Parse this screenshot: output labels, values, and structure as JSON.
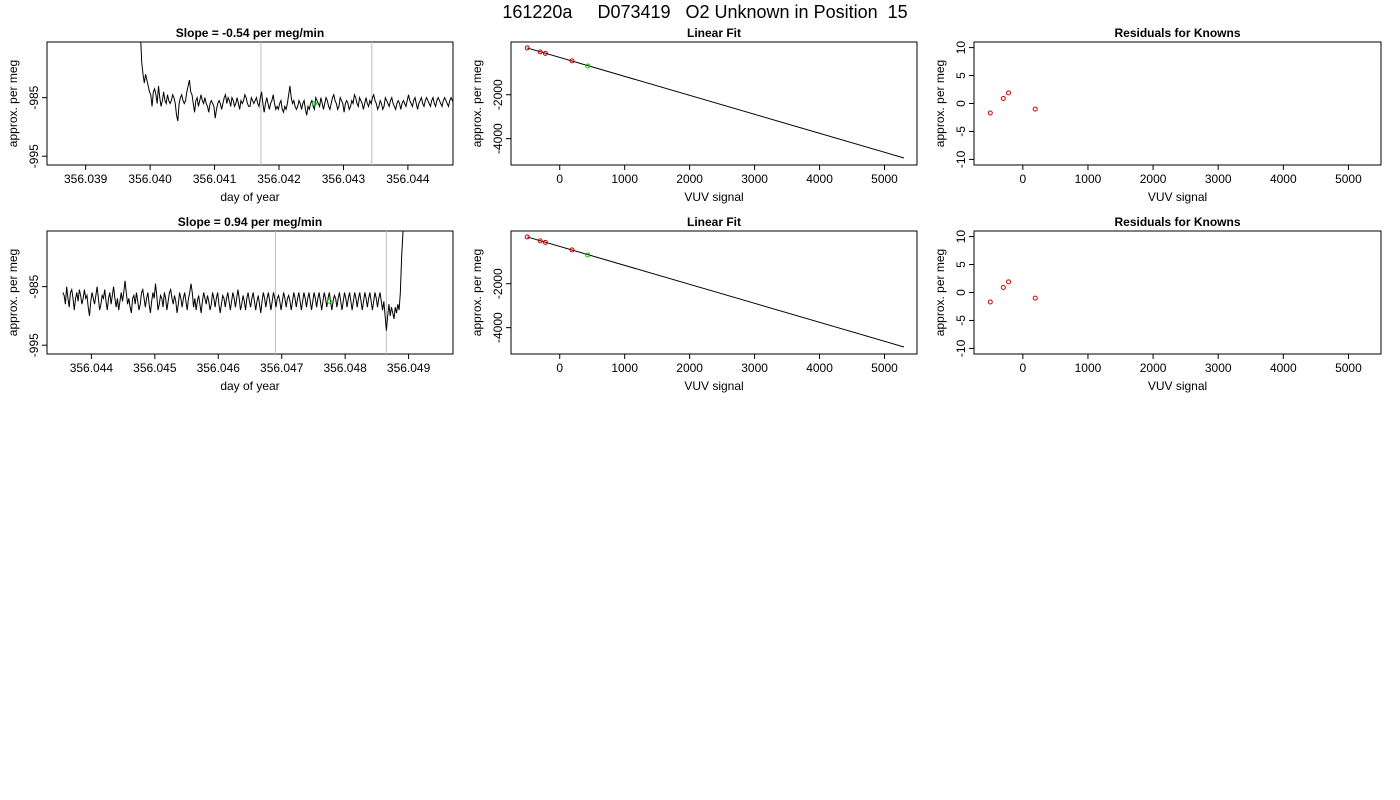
{
  "figure": {
    "title": "161220a     D073419   O2 Unknown in Position  15"
  },
  "chart_data": [
    {
      "type": "line",
      "title": "Slope =  -0.54  per meg/min",
      "xlabel": "day of year",
      "ylabel": "approx. per meg",
      "xlim": [
        356.0384,
        356.0447
      ],
      "ylim": [
        -996.5,
        -975.5
      ],
      "x_ticks": [
        "356.039",
        "356.040",
        "356.041",
        "356.042",
        "356.043",
        "356.044"
      ],
      "y_ticks": [
        "-985",
        "-995"
      ],
      "series": [
        {
          "x_start": 356.03985,
          "x_step": 2e-05,
          "values": [
            -974.0,
            -979.0,
            -981.0,
            -982.5,
            -981.0,
            -982.0,
            -983.0,
            -984.0,
            -984.5,
            -986.5,
            -984.0,
            -983.5,
            -984.5,
            -986.0,
            -983.0,
            -985.0,
            -986.5,
            -985.5,
            -984.0,
            -985.5,
            -986.0,
            -984.5,
            -985.5,
            -986.0,
            -985.5,
            -984.5,
            -985.0,
            -986.0,
            -988.0,
            -989.0,
            -986.0,
            -985.0,
            -984.5,
            -985.5,
            -986.0,
            -985.5,
            -984.0,
            -983.0,
            -982.0,
            -984.0,
            -984.5,
            -986.0,
            -987.5,
            -985.5,
            -985.0,
            -986.5,
            -985.5,
            -984.5,
            -985.5,
            -986.0,
            -985.0,
            -986.0,
            -986.5,
            -987.5,
            -986.0,
            -985.5,
            -986.0,
            -986.5,
            -988.5,
            -987.0,
            -986.0,
            -985.5,
            -986.0,
            -987.0,
            -986.0,
            -985.0,
            -984.5,
            -986.0,
            -985.0,
            -985.5,
            -986.5,
            -985.0,
            -985.5,
            -986.5,
            -986.0,
            -985.0,
            -986.0,
            -987.0,
            -985.5,
            -986.0,
            -985.5,
            -984.5,
            -985.0,
            -986.0,
            -986.5,
            -986.5,
            -985.0,
            -985.5,
            -986.0,
            -985.5,
            -985.0,
            -986.0,
            -986.5,
            -985.0,
            -984.0,
            -986.0,
            -987.5,
            -986.0,
            -985.0,
            -986.0,
            -987.0,
            -986.0,
            -985.5,
            -984.5,
            -986.0,
            -987.0,
            -986.5,
            -987.0,
            -986.0,
            -985.5,
            -987.0,
            -987.5,
            -986.5,
            -987.0,
            -986.0,
            -984.5,
            -983.0,
            -985.0,
            -986.0,
            -985.5,
            -986.5,
            -987.0,
            -986.5,
            -985.5,
            -986.0,
            -987.0,
            -986.0,
            -985.5,
            -987.0,
            -988.0,
            -986.5,
            -987.0,
            -986.0,
            -985.5,
            -986.5,
            -987.0,
            -985.0,
            -985.5,
            -986.0,
            -986.5,
            -985.0,
            -986.0,
            -987.0,
            -986.0,
            -985.0,
            -985.5,
            -986.5,
            -987.0,
            -986.0,
            -985.0,
            -984.5,
            -985.5,
            -986.0,
            -987.0,
            -986.5,
            -985.0,
            -985.5,
            -986.0,
            -987.5,
            -986.0,
            -985.5,
            -986.0,
            -987.0,
            -986.5,
            -985.5,
            -986.0,
            -984.5,
            -985.0,
            -986.0,
            -986.5,
            -985.0,
            -985.5,
            -986.0,
            -987.0,
            -986.0,
            -985.0,
            -986.0,
            -986.5,
            -985.5,
            -986.0,
            -985.0,
            -984.5,
            -985.5,
            -986.0,
            -987.0,
            -986.5,
            -985.5,
            -986.0,
            -987.0,
            -986.5,
            -985.0,
            -985.5,
            -986.0,
            -986.5,
            -985.5,
            -985.0,
            -986.0,
            -986.5,
            -987.0,
            -986.0,
            -985.5,
            -986.0,
            -987.0,
            -986.0,
            -985.5,
            -986.0,
            -986.5,
            -985.5,
            -984.5,
            -985.5,
            -986.0,
            -986.5,
            -985.5,
            -985.0,
            -986.0,
            -987.0,
            -986.0,
            -985.5,
            -985.0,
            -986.0,
            -986.5,
            -985.5,
            -985.0,
            -985.5,
            -986.0,
            -986.5,
            -985.5,
            -985.0,
            -986.0,
            -986.5,
            -985.5,
            -985.0,
            -985.5,
            -986.0,
            -986.5,
            -985.5,
            -985.0,
            -985.5,
            -986.0,
            -986.5,
            -985.5,
            -985.0,
            -985.5,
            -986.0,
            -986.5,
            -985.5,
            -985.0,
            -985.5,
            -986.0,
            -986.5,
            -985.5,
            -985.0,
            -985.5,
            -986.0,
            -986.5,
            -985.5,
            -985.0,
            -985.5,
            -986.0,
            -986.5,
            -985.5,
            -985.0,
            -985.5,
            -986.0,
            -986.5,
            -985.5,
            -985.0,
            -985.5,
            -986.0,
            -986.5,
            -985.5,
            -985.0,
            -985.5,
            -986.0,
            -986.5,
            -985.5,
            -985.0,
            -985.5,
            -986.0,
            -986.5,
            -985.5,
            -985.0,
            -985.5,
            -986.0,
            -986.5,
            -985.5,
            -985.0,
            -985.5,
            -986.0,
            -986.5,
            -985.5,
            -985.0,
            -985.0,
            -984.5
          ]
        }
      ],
      "vlines": [
        356.04172,
        356.04344
      ],
      "highlight_point": {
        "x": 356.04255,
        "y": -986.0,
        "color": "#00cc00"
      },
      "grid": false
    },
    {
      "type": "scatter",
      "title": "Linear Fit",
      "xlabel": "VUV signal",
      "ylabel": "approx. per meg",
      "xlim": [
        -750,
        5500
      ],
      "ylim": [
        -5200,
        400
      ],
      "x_ticks": [
        0,
        1000,
        2000,
        3000,
        4000,
        5000
      ],
      "y_ticks": [
        -2000,
        -4000
      ],
      "points": [
        {
          "x": -500,
          "y": 130,
          "color": "#cc0000"
        },
        {
          "x": -300,
          "y": -50,
          "color": "#cc0000"
        },
        {
          "x": -220,
          "y": -120,
          "color": "#cc0000"
        },
        {
          "x": 190,
          "y": -460,
          "color": "#cc0000"
        },
        {
          "x": 430,
          "y": -690,
          "color": "#00cc00"
        }
      ],
      "fit_line": {
        "x": [
          -500,
          5300
        ],
        "y": [
          130,
          -4880
        ]
      },
      "grid": false
    },
    {
      "type": "scatter",
      "title": "Residuals for Knowns",
      "xlabel": "VUV signal",
      "ylabel": "approx. per meg",
      "xlim": [
        -750,
        5500
      ],
      "ylim": [
        -11,
        11
      ],
      "x_ticks": [
        0,
        1000,
        2000,
        3000,
        4000,
        5000
      ],
      "y_ticks": [
        10,
        5,
        0,
        -5,
        -10
      ],
      "points": [
        {
          "x": -500,
          "y": -1.7,
          "color": "#cc0000"
        },
        {
          "x": -300,
          "y": 0.9,
          "color": "#cc0000"
        },
        {
          "x": -220,
          "y": 1.9,
          "color": "#cc0000"
        },
        {
          "x": 190,
          "y": -1.0,
          "color": "#cc0000"
        }
      ],
      "grid": false
    },
    {
      "type": "line",
      "title": "Slope =  0.94  per meg/min",
      "xlabel": "day of year",
      "ylabel": "approx. per meg",
      "xlim": [
        356.0433,
        356.0497
      ],
      "ylim": [
        -996.5,
        -975.5
      ],
      "x_ticks": [
        "356.044",
        "356.045",
        "356.046",
        "356.047",
        "356.048",
        "356.049"
      ],
      "y_ticks": [
        "-985",
        "-995"
      ],
      "series": [
        {
          "x_start": 356.04355,
          "x_step": 2e-05,
          "values": [
            -986.0,
            -986.5,
            -988.0,
            -985.0,
            -987.0,
            -988.5,
            -986.0,
            -985.5,
            -987.0,
            -989.0,
            -987.0,
            -986.0,
            -987.5,
            -985.5,
            -986.5,
            -988.0,
            -987.0,
            -985.5,
            -987.0,
            -986.5,
            -988.5,
            -990.0,
            -987.5,
            -986.0,
            -987.0,
            -988.0,
            -986.5,
            -985.0,
            -987.0,
            -989.0,
            -988.0,
            -986.5,
            -987.0,
            -985.5,
            -987.5,
            -989.0,
            -987.0,
            -986.0,
            -988.0,
            -986.5,
            -985.0,
            -987.0,
            -988.5,
            -987.0,
            -989.0,
            -987.5,
            -986.0,
            -987.5,
            -986.0,
            -984.0,
            -986.0,
            -988.0,
            -987.0,
            -988.5,
            -989.5,
            -987.0,
            -986.5,
            -988.0,
            -986.0,
            -987.5,
            -989.0,
            -988.0,
            -986.0,
            -985.5,
            -987.0,
            -988.5,
            -987.0,
            -986.0,
            -988.0,
            -989.5,
            -987.5,
            -986.0,
            -987.0,
            -984.5,
            -986.5,
            -989.0,
            -988.0,
            -986.5,
            -987.0,
            -988.5,
            -986.0,
            -987.0,
            -989.0,
            -987.5,
            -986.0,
            -985.5,
            -987.0,
            -988.0,
            -986.5,
            -987.5,
            -989.5,
            -988.0,
            -986.0,
            -987.0,
            -988.5,
            -987.0,
            -986.0,
            -987.5,
            -989.0,
            -987.0,
            -986.0,
            -984.5,
            -986.0,
            -988.5,
            -987.0,
            -989.0,
            -987.5,
            -986.5,
            -988.0,
            -989.5,
            -987.5,
            -986.0,
            -987.0,
            -988.0,
            -986.5,
            -987.5,
            -989.0,
            -988.0,
            -986.0,
            -987.0,
            -988.5,
            -987.0,
            -986.0,
            -988.0,
            -989.5,
            -988.0,
            -986.5,
            -987.0,
            -988.5,
            -987.0,
            -986.0,
            -987.5,
            -989.0,
            -987.5,
            -986.0,
            -987.0,
            -988.5,
            -987.0,
            -985.5,
            -987.0,
            -989.0,
            -988.0,
            -986.5,
            -987.5,
            -989.0,
            -987.0,
            -986.0,
            -987.5,
            -988.5,
            -987.0,
            -986.0,
            -987.5,
            -989.0,
            -987.5,
            -986.5,
            -988.0,
            -989.5,
            -987.5,
            -986.0,
            -987.0,
            -988.5,
            -987.0,
            -986.0,
            -987.5,
            -989.0,
            -987.5,
            -986.0,
            -987.0,
            -988.5,
            -987.0,
            -986.5,
            -987.5,
            -989.0,
            -987.5,
            -986.0,
            -987.0,
            -988.5,
            -987.0,
            -986.5,
            -987.5,
            -989.0,
            -987.5,
            -986.0,
            -987.0,
            -988.5,
            -987.0,
            -986.0,
            -987.5,
            -989.0,
            -987.5,
            -986.0,
            -987.0,
            -988.5,
            -987.0,
            -986.0,
            -987.5,
            -989.0,
            -987.5,
            -986.0,
            -987.0,
            -988.5,
            -987.0,
            -986.0,
            -987.5,
            -989.0,
            -987.5,
            -986.0,
            -987.0,
            -988.5,
            -987.0,
            -986.0,
            -987.5,
            -989.0,
            -987.5,
            -986.5,
            -987.0,
            -988.5,
            -987.0,
            -986.0,
            -987.5,
            -989.0,
            -987.5,
            -986.0,
            -987.0,
            -988.5,
            -987.0,
            -986.0,
            -987.5,
            -989.0,
            -987.5,
            -986.0,
            -987.0,
            -988.5,
            -987.0,
            -986.0,
            -987.5,
            -989.0,
            -987.5,
            -986.0,
            -987.0,
            -988.5,
            -987.0,
            -986.0,
            -987.5,
            -989.0,
            -987.5,
            -986.0,
            -987.0,
            -988.5,
            -987.0,
            -986.0,
            -987.5,
            -989.0,
            -987.5,
            -990.0,
            -992.5,
            -990.0,
            -988.0,
            -990.0,
            -988.5,
            -989.5,
            -990.5,
            -988.5,
            -989.5,
            -988.0,
            -989.0,
            -986.0,
            -980.0,
            -976.0,
            -972.0
          ]
        }
      ],
      "vlines": [
        356.0469,
        356.04865
      ],
      "highlight_point": {
        "x": 356.04775,
        "y": -987.5,
        "color": "#00cc00"
      },
      "grid": false
    },
    {
      "type": "scatter",
      "title": "Linear Fit",
      "xlabel": "VUV signal",
      "ylabel": "approx. per meg",
      "xlim": [
        -750,
        5500
      ],
      "ylim": [
        -5200,
        400
      ],
      "x_ticks": [
        0,
        1000,
        2000,
        3000,
        4000,
        5000
      ],
      "y_ticks": [
        -2000,
        -4000
      ],
      "points": [
        {
          "x": -500,
          "y": 130,
          "color": "#cc0000"
        },
        {
          "x": -300,
          "y": -50,
          "color": "#cc0000"
        },
        {
          "x": -220,
          "y": -120,
          "color": "#cc0000"
        },
        {
          "x": 190,
          "y": -460,
          "color": "#cc0000"
        },
        {
          "x": 430,
          "y": -690,
          "color": "#00cc00"
        }
      ],
      "fit_line": {
        "x": [
          -500,
          5300
        ],
        "y": [
          130,
          -4880
        ]
      },
      "grid": false
    },
    {
      "type": "scatter",
      "title": "Residuals for Knowns",
      "xlabel": "VUV signal",
      "ylabel": "approx. per meg",
      "xlim": [
        -750,
        5500
      ],
      "ylim": [
        -11,
        11
      ],
      "x_ticks": [
        0,
        1000,
        2000,
        3000,
        4000,
        5000
      ],
      "y_ticks": [
        10,
        5,
        0,
        -5,
        -10
      ],
      "points": [
        {
          "x": -500,
          "y": -1.7,
          "color": "#cc0000"
        },
        {
          "x": -300,
          "y": 0.9,
          "color": "#cc0000"
        },
        {
          "x": -220,
          "y": 1.9,
          "color": "#cc0000"
        },
        {
          "x": 190,
          "y": -1.0,
          "color": "#cc0000"
        }
      ],
      "grid": false
    }
  ]
}
